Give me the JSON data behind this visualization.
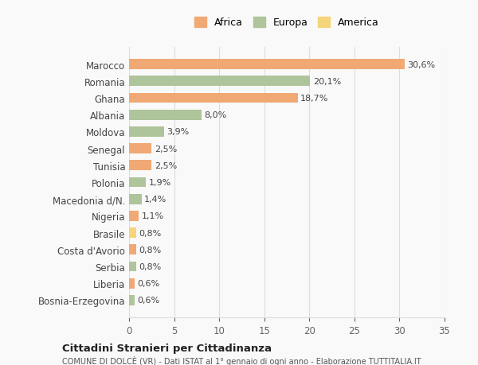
{
  "countries": [
    "Marocco",
    "Romania",
    "Ghana",
    "Albania",
    "Moldova",
    "Senegal",
    "Tunisia",
    "Polonia",
    "Macedonia d/N.",
    "Nigeria",
    "Brasile",
    "Costa d'Avorio",
    "Serbia",
    "Liberia",
    "Bosnia-Erzegovina"
  ],
  "values": [
    30.6,
    20.1,
    18.7,
    8.0,
    3.9,
    2.5,
    2.5,
    1.9,
    1.4,
    1.1,
    0.8,
    0.8,
    0.8,
    0.6,
    0.6
  ],
  "labels": [
    "30,6%",
    "20,1%",
    "18,7%",
    "8,0%",
    "3,9%",
    "2,5%",
    "2,5%",
    "1,9%",
    "1,4%",
    "1,1%",
    "0,8%",
    "0,8%",
    "0,8%",
    "0,6%",
    "0,6%"
  ],
  "continents": [
    "Africa",
    "Europa",
    "Africa",
    "Europa",
    "Europa",
    "Africa",
    "Africa",
    "Europa",
    "Europa",
    "Africa",
    "America",
    "Africa",
    "Europa",
    "Africa",
    "Europa"
  ],
  "colors": {
    "Africa": "#f0a875",
    "Europa": "#aec49a",
    "America": "#f5d57a"
  },
  "legend_order": [
    "Africa",
    "Europa",
    "America"
  ],
  "bg_color": "#f9f9f9",
  "grid_color": "#dddddd",
  "title_bold": "Cittadini Stranieri per Cittadinanza",
  "subtitle": "COMUNE DI DOLCÈ (VR) - Dati ISTAT al 1° gennaio di ogni anno - Elaborazione TUTTITALIA.IT",
  "xlim": [
    0,
    35
  ],
  "xticks": [
    0,
    5,
    10,
    15,
    20,
    25,
    30,
    35
  ]
}
